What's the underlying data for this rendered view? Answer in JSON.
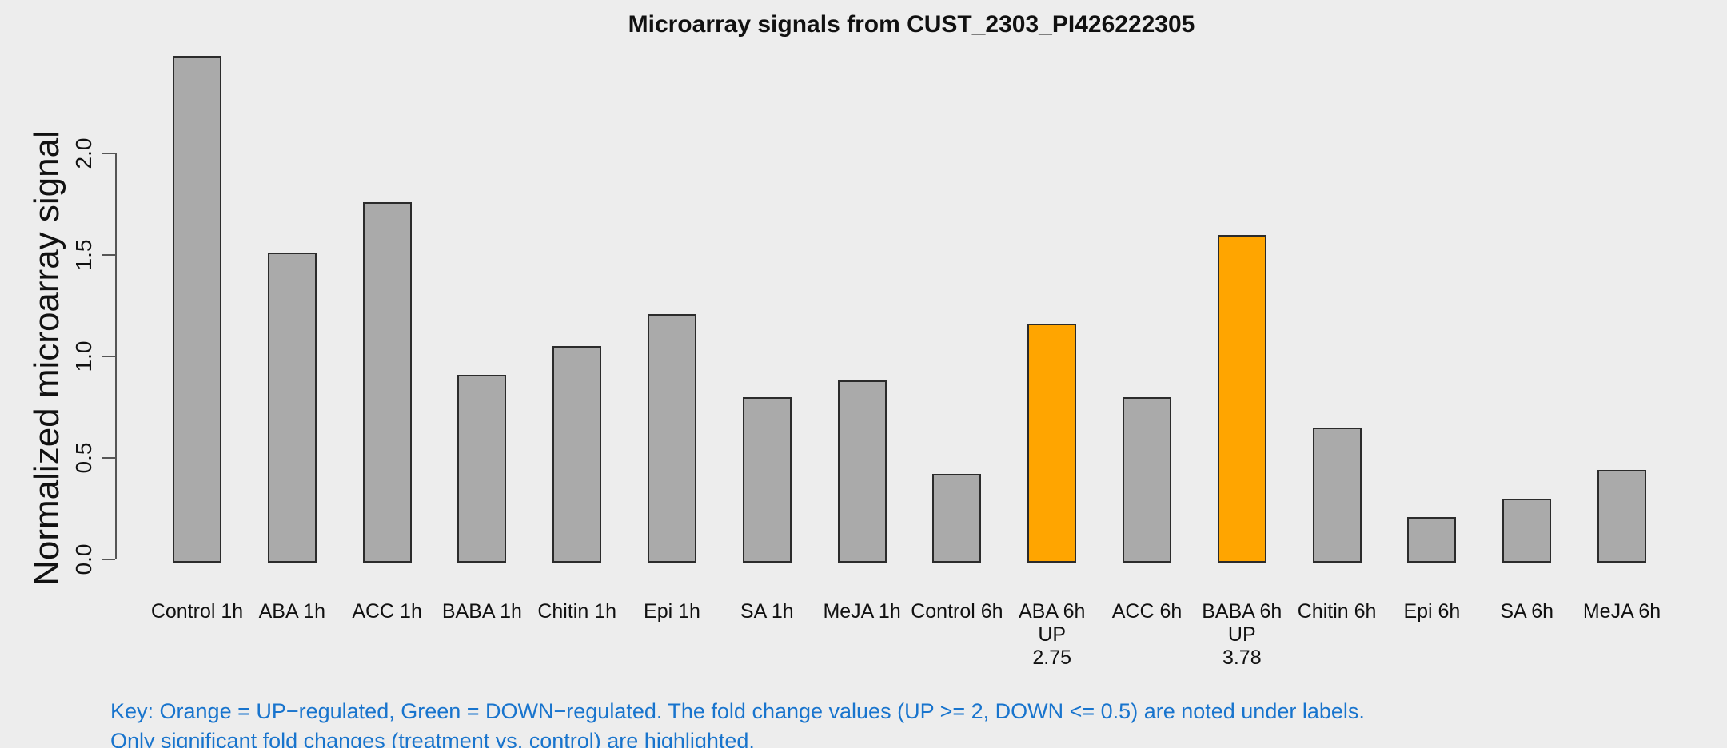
{
  "title": "Microarray signals from CUST_2303_PI426222305",
  "key": {
    "line1": "Key: Orange = UP−regulated, Green = DOWN−regulated. The fold change values (UP >= 2, DOWN <= 0.5) are noted under labels.",
    "line2": "Only significant fold changes (treatment vs. control) are highlighted.",
    "text_color": "#1874CD"
  },
  "chart_data": {
    "type": "bar",
    "title": "Microarray signals from CUST_2303_PI426222305",
    "xlabel": "",
    "ylabel": "Normalized microarray signal",
    "ylim": [
      0,
      2.5
    ],
    "yticks": [
      0,
      0.5,
      1,
      1.5,
      2
    ],
    "ytick_labels": [
      "0.0",
      "0.5",
      "1.0",
      "1.5",
      "2.0"
    ],
    "grid": false,
    "legend_position": "none",
    "categories": [
      "Control 1h",
      "ABA 1h",
      "ACC 1h",
      "BABA 1h",
      "Chitin 1h",
      "Epi 1h",
      "SA 1h",
      "MeJA 1h",
      "Control 6h",
      "ABA 6h",
      "ACC 6h",
      "BABA 6h",
      "Chitin 6h",
      "Epi 6h",
      "SA 6h",
      "MeJA 6h"
    ],
    "values": [
      2.48,
      1.51,
      1.76,
      0.91,
      1.05,
      1.21,
      0.8,
      0.88,
      0.42,
      1.16,
      0.8,
      1.6,
      0.65,
      0.21,
      0.3,
      0.44
    ],
    "bars": [
      {
        "label": "Control 1h",
        "value": 2.48,
        "color": "gray",
        "notes": []
      },
      {
        "label": "ABA 1h",
        "value": 1.51,
        "color": "gray",
        "notes": []
      },
      {
        "label": "ACC 1h",
        "value": 1.76,
        "color": "gray",
        "notes": []
      },
      {
        "label": "BABA 1h",
        "value": 0.91,
        "color": "gray",
        "notes": []
      },
      {
        "label": "Chitin 1h",
        "value": 1.05,
        "color": "gray",
        "notes": []
      },
      {
        "label": "Epi 1h",
        "value": 1.21,
        "color": "gray",
        "notes": []
      },
      {
        "label": "SA 1h",
        "value": 0.8,
        "color": "gray",
        "notes": []
      },
      {
        "label": "MeJA 1h",
        "value": 0.88,
        "color": "gray",
        "notes": []
      },
      {
        "label": "Control 6h",
        "value": 0.42,
        "color": "gray",
        "notes": []
      },
      {
        "label": "ABA 6h",
        "value": 1.16,
        "color": "orange",
        "notes": [
          "UP",
          "2.75"
        ]
      },
      {
        "label": "ACC 6h",
        "value": 0.8,
        "color": "gray",
        "notes": []
      },
      {
        "label": "BABA 6h",
        "value": 1.6,
        "color": "orange",
        "notes": [
          "UP",
          "3.78"
        ]
      },
      {
        "label": "Chitin 6h",
        "value": 0.65,
        "color": "gray",
        "notes": []
      },
      {
        "label": "Epi 6h",
        "value": 0.21,
        "color": "gray",
        "notes": []
      },
      {
        "label": "SA 6h",
        "value": 0.3,
        "color": "gray",
        "notes": []
      },
      {
        "label": "MeJA 6h",
        "value": 0.44,
        "color": "gray",
        "notes": []
      }
    ],
    "colors": {
      "gray": "#AAAAAA",
      "orange": "#FFA500",
      "border": "#2B2B2B",
      "axis": "#555555",
      "background": "#EDEDED"
    },
    "annotations": {
      "up_threshold": "UP >= 2",
      "down_threshold": "DOWN <= 0.5"
    }
  }
}
